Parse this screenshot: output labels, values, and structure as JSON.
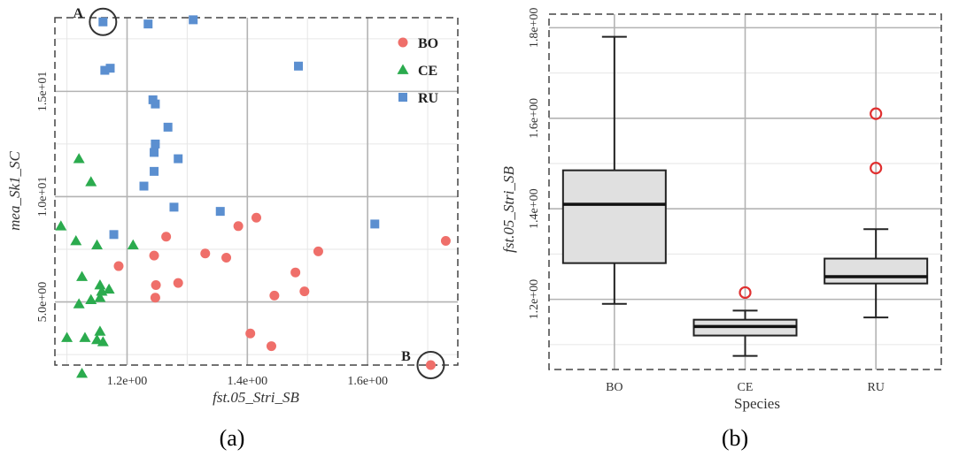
{
  "chart_data": [
    {
      "type": "scatter",
      "panel_label": "(a)",
      "xlabel": "fst.05_Stri_SB",
      "ylabel": "mea_Sk1_SC",
      "xlim": [
        1.08,
        1.75
      ],
      "ylim": [
        2.0,
        18.5
      ],
      "x_ticks": [
        1.2,
        1.4,
        1.6
      ],
      "x_tick_labels": [
        "1.2e+00",
        "1.4e+00",
        "1.6e+00"
      ],
      "y_ticks": [
        5,
        10,
        15
      ],
      "y_tick_labels": [
        "5.0e+00",
        "1.0e+01",
        "1.5e+01"
      ],
      "grid": true,
      "legend_position": "top-right",
      "colors": {
        "BO": "#ef6f6a",
        "CE": "#2bab4e",
        "RU": "#5b8fd0"
      },
      "series": [
        {
          "name": "BO",
          "marker": "circle",
          "points": [
            [
              1.186,
              6.7
            ],
            [
              1.245,
              7.2
            ],
            [
              1.265,
              8.1
            ],
            [
              1.248,
              5.8
            ],
            [
              1.247,
              5.2
            ],
            [
              1.285,
              5.9
            ],
            [
              1.33,
              7.3
            ],
            [
              1.365,
              7.1
            ],
            [
              1.385,
              8.6
            ],
            [
              1.405,
              3.5
            ],
            [
              1.415,
              9.0
            ],
            [
              1.44,
              2.9
            ],
            [
              1.445,
              5.3
            ],
            [
              1.48,
              6.4
            ],
            [
              1.495,
              5.5
            ],
            [
              1.518,
              7.4
            ],
            [
              1.73,
              7.9
            ],
            [
              1.705,
              2.0
            ]
          ]
        },
        {
          "name": "CE",
          "marker": "triangle",
          "points": [
            [
              1.09,
              8.6
            ],
            [
              1.12,
              11.8
            ],
            [
              1.14,
              10.7
            ],
            [
              1.115,
              7.9
            ],
            [
              1.15,
              7.7
            ],
            [
              1.21,
              7.7
            ],
            [
              1.125,
              6.2
            ],
            [
              1.155,
              5.8
            ],
            [
              1.17,
              5.6
            ],
            [
              1.14,
              5.1
            ],
            [
              1.155,
              5.2
            ],
            [
              1.12,
              4.9
            ],
            [
              1.1,
              3.3
            ],
            [
              1.13,
              3.3
            ],
            [
              1.155,
              3.6
            ],
            [
              1.16,
              3.1
            ],
            [
              1.125,
              1.6
            ],
            [
              1.158,
              5.5
            ],
            [
              1.15,
              3.2
            ]
          ]
        },
        {
          "name": "RU",
          "marker": "square",
          "points": [
            [
              1.16,
              18.3
            ],
            [
              1.235,
              18.2
            ],
            [
              1.31,
              18.4
            ],
            [
              1.163,
              16.0
            ],
            [
              1.172,
              16.1
            ],
            [
              1.485,
              16.2
            ],
            [
              1.243,
              14.6
            ],
            [
              1.247,
              14.4
            ],
            [
              1.268,
              13.3
            ],
            [
              1.247,
              12.5
            ],
            [
              1.245,
              12.1
            ],
            [
              1.285,
              11.8
            ],
            [
              1.245,
              11.2
            ],
            [
              1.228,
              10.5
            ],
            [
              1.278,
              9.5
            ],
            [
              1.355,
              9.3
            ],
            [
              1.178,
              8.2
            ],
            [
              1.612,
              8.7
            ]
          ]
        }
      ],
      "annotations": [
        {
          "label": "A",
          "x": 1.16,
          "y": 18.3
        },
        {
          "label": "B",
          "x": 1.705,
          "y": 2.0
        }
      ]
    },
    {
      "type": "box",
      "panel_label": "(b)",
      "xlabel": "Species",
      "ylabel": "fst.05_Stri_SB",
      "categories": [
        "BO",
        "CE",
        "RU"
      ],
      "ylim": [
        1.045,
        1.83
      ],
      "y_ticks": [
        1.2,
        1.4,
        1.6,
        1.8
      ],
      "y_tick_labels": [
        "1.2e+00",
        "1.4e+00",
        "1.6e+00",
        "1.8e+00"
      ],
      "grid": true,
      "colors": {
        "box_fill": "#e0e0e0",
        "outlier": "#e03030"
      },
      "boxes": [
        {
          "category": "BO",
          "whisker_low": 1.19,
          "q1": 1.28,
          "median": 1.41,
          "q3": 1.485,
          "whisker_high": 1.78,
          "outliers": []
        },
        {
          "category": "CE",
          "whisker_low": 1.075,
          "q1": 1.12,
          "median": 1.14,
          "q3": 1.155,
          "whisker_high": 1.175,
          "outliers": [
            1.215
          ]
        },
        {
          "category": "RU",
          "whisker_low": 1.16,
          "q1": 1.235,
          "median": 1.25,
          "q3": 1.29,
          "whisker_high": 1.355,
          "outliers": [
            1.49,
            1.61
          ]
        }
      ]
    }
  ]
}
